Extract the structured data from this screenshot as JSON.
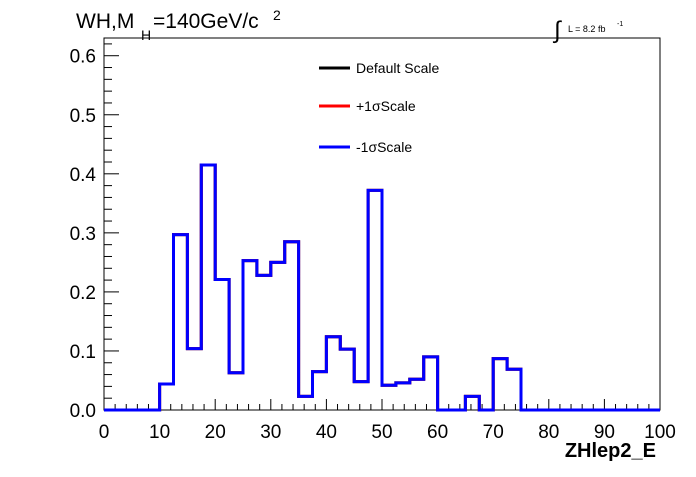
{
  "chart_data": {
    "type": "line",
    "title_main": "WH,M",
    "title_sub": "H",
    "title_rest": "=140GeV/c",
    "title_sup": "2",
    "lumi_integral": "∫",
    "lumi_text": "L = 8.2 fb",
    "lumi_sup": "-1",
    "xlabel": "ZHlep2_E",
    "ylabel": "",
    "xlim": [
      0,
      100
    ],
    "ylim": [
      0,
      0.63
    ],
    "x_ticks": [
      0,
      10,
      20,
      30,
      40,
      50,
      60,
      70,
      80,
      90,
      100
    ],
    "x_tick_labels": [
      "0",
      "10",
      "20",
      "30",
      "40",
      "50",
      "60",
      "70",
      "80",
      "90",
      "100"
    ],
    "y_ticks": [
      0,
      0.1,
      0.2,
      0.3,
      0.4,
      0.5,
      0.6
    ],
    "y_tick_labels": [
      "0.0",
      "0.1",
      "0.2",
      "0.3",
      "0.4",
      "0.5",
      "0.6"
    ],
    "bin_edges": [
      0,
      2.5,
      5,
      7.5,
      10,
      12.5,
      15,
      17.5,
      20,
      22.5,
      25,
      27.5,
      30,
      32.5,
      35,
      37.5,
      40,
      42.5,
      45,
      47.5,
      50,
      52.5,
      55,
      57.5,
      60,
      62.5,
      65,
      67.5,
      70,
      72.5,
      75,
      77.5,
      80,
      82.5,
      85,
      87.5,
      90,
      92.5,
      95,
      97.5,
      100
    ],
    "series": [
      {
        "name": "Default Scale",
        "color": "#000000",
        "values": [
          0,
          0,
          0,
          0,
          0.044,
          0.297,
          0.104,
          0.415,
          0.221,
          0.063,
          0.253,
          0.228,
          0.25,
          0.285,
          0.023,
          0.065,
          0.124,
          0.103,
          0.048,
          0.372,
          0.042,
          0.046,
          0.052,
          0.09,
          0,
          0,
          0.023,
          0,
          0.087,
          0.069,
          0,
          0,
          0,
          0,
          0,
          0,
          0,
          0,
          0,
          0
        ]
      },
      {
        "name": "+1σScale",
        "color": "#ff0000",
        "values": [
          0,
          0,
          0,
          0,
          0.044,
          0.297,
          0.104,
          0.415,
          0.221,
          0.063,
          0.253,
          0.228,
          0.25,
          0.285,
          0.023,
          0.065,
          0.124,
          0.103,
          0.048,
          0.372,
          0.042,
          0.046,
          0.052,
          0.09,
          0,
          0,
          0.023,
          0,
          0.087,
          0.069,
          0,
          0,
          0,
          0,
          0,
          0,
          0,
          0,
          0,
          0
        ]
      },
      {
        "name": "-1σScale",
        "color": "#0000ff",
        "values": [
          0,
          0,
          0,
          0,
          0.044,
          0.297,
          0.104,
          0.415,
          0.221,
          0.063,
          0.253,
          0.228,
          0.25,
          0.285,
          0.023,
          0.065,
          0.124,
          0.103,
          0.048,
          0.372,
          0.042,
          0.046,
          0.052,
          0.09,
          0,
          0,
          0.023,
          0,
          0.087,
          0.069,
          0,
          0,
          0,
          0,
          0,
          0,
          0,
          0,
          0,
          0
        ]
      }
    ],
    "legend_position": "top-center",
    "grid": false
  }
}
